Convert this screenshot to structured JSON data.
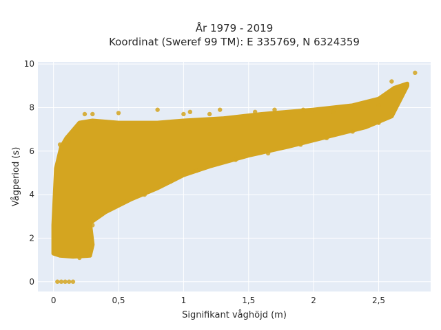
{
  "chart_data": {
    "type": "scatter",
    "title": "År 1979 - 2019",
    "subtitle": "Koordinat (Sweref 99 TM): E 335769, N 6324359",
    "xlabel": "Signifikant våghöjd (m)",
    "ylabel": "Vågperiod (s)",
    "xlim": [
      -0.12,
      2.9
    ],
    "ylim": [
      -0.45,
      10.1
    ],
    "x_ticks": [
      0,
      0.5,
      1,
      1.5,
      2,
      2.5
    ],
    "x_tick_labels": [
      "0",
      "0,5",
      "1",
      "1,5",
      "2",
      "2,5"
    ],
    "y_ticks": [
      0,
      2,
      4,
      6,
      8,
      10
    ],
    "y_tick_labels": [
      "0",
      "2",
      "4",
      "6",
      "8",
      "10"
    ],
    "grid": true,
    "legend": "none",
    "marker_color": "#d4a520",
    "background_color": "#e5ecf6",
    "envelope": {
      "upper": [
        [
          0.0,
          2.6
        ],
        [
          0.02,
          5.2
        ],
        [
          0.06,
          6.2
        ],
        [
          0.1,
          6.6
        ],
        [
          0.2,
          7.3
        ],
        [
          0.3,
          7.4
        ],
        [
          0.5,
          7.3
        ],
        [
          0.8,
          7.3
        ],
        [
          1.0,
          7.4
        ],
        [
          1.3,
          7.5
        ],
        [
          1.6,
          7.7
        ],
        [
          2.0,
          7.9
        ],
        [
          2.3,
          8.1
        ],
        [
          2.5,
          8.4
        ],
        [
          2.62,
          8.9
        ],
        [
          2.72,
          9.1
        ]
      ],
      "lower": [
        [
          0.0,
          2.5
        ],
        [
          0.0,
          1.3
        ],
        [
          0.05,
          1.2
        ],
        [
          0.15,
          1.15
        ],
        [
          0.28,
          1.2
        ],
        [
          0.3,
          1.7
        ],
        [
          0.28,
          2.7
        ],
        [
          0.4,
          3.2
        ],
        [
          0.6,
          3.8
        ],
        [
          0.8,
          4.3
        ],
        [
          1.0,
          4.9
        ],
        [
          1.2,
          5.3
        ],
        [
          1.5,
          5.8
        ],
        [
          1.8,
          6.2
        ],
        [
          2.0,
          6.5
        ],
        [
          2.2,
          6.8
        ],
        [
          2.4,
          7.1
        ],
        [
          2.6,
          7.6
        ],
        [
          2.72,
          9.0
        ]
      ]
    },
    "scatter_points": [
      {
        "x": 0.03,
        "y": 0.0
      },
      {
        "x": 0.06,
        "y": 0.0
      },
      {
        "x": 0.09,
        "y": 0.0
      },
      {
        "x": 0.12,
        "y": 0.0
      },
      {
        "x": 0.15,
        "y": 0.0
      },
      {
        "x": 0.24,
        "y": 7.7
      },
      {
        "x": 0.3,
        "y": 7.7
      },
      {
        "x": 0.5,
        "y": 7.75
      },
      {
        "x": 0.8,
        "y": 7.9
      },
      {
        "x": 1.0,
        "y": 7.7
      },
      {
        "x": 1.05,
        "y": 7.8
      },
      {
        "x": 1.2,
        "y": 7.7
      },
      {
        "x": 1.28,
        "y": 7.9
      },
      {
        "x": 1.55,
        "y": 7.8
      },
      {
        "x": 1.7,
        "y": 7.9
      },
      {
        "x": 1.92,
        "y": 7.9
      },
      {
        "x": 2.15,
        "y": 7.8
      },
      {
        "x": 2.3,
        "y": 8.0
      },
      {
        "x": 2.42,
        "y": 8.05
      },
      {
        "x": 2.5,
        "y": 8.1
      },
      {
        "x": 2.55,
        "y": 8.5
      },
      {
        "x": 2.6,
        "y": 9.2
      },
      {
        "x": 2.7,
        "y": 8.9
      },
      {
        "x": 2.78,
        "y": 9.6
      },
      {
        "x": 0.05,
        "y": 6.3
      },
      {
        "x": 0.12,
        "y": 6.45
      },
      {
        "x": 0.18,
        "y": 6.9
      },
      {
        "x": 0.2,
        "y": 1.1
      },
      {
        "x": 0.26,
        "y": 1.2
      },
      {
        "x": 0.3,
        "y": 2.6
      },
      {
        "x": 0.45,
        "y": 3.4
      },
      {
        "x": 0.7,
        "y": 4.0
      },
      {
        "x": 0.9,
        "y": 4.6
      },
      {
        "x": 1.1,
        "y": 5.1
      },
      {
        "x": 1.4,
        "y": 5.6
      },
      {
        "x": 1.65,
        "y": 5.9
      },
      {
        "x": 1.9,
        "y": 6.3
      },
      {
        "x": 2.1,
        "y": 6.6
      },
      {
        "x": 2.3,
        "y": 6.9
      },
      {
        "x": 2.5,
        "y": 7.3
      }
    ]
  }
}
